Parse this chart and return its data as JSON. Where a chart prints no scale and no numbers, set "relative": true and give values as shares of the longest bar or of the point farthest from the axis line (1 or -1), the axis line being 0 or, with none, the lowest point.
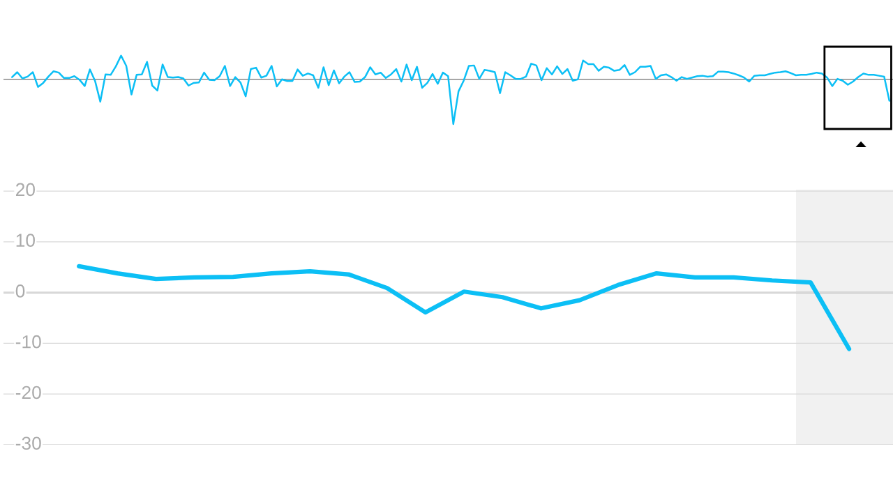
{
  "chart_data": [
    {
      "type": "line",
      "relative": true,
      "categories": [
        null,
        null,
        null,
        null,
        null,
        null,
        null,
        null,
        null,
        null,
        null,
        null,
        null,
        null,
        null,
        null,
        null,
        null,
        null,
        null,
        null,
        null,
        null,
        null,
        null,
        null,
        null,
        null,
        null,
        null,
        null,
        null,
        null,
        null,
        null,
        null,
        null,
        null,
        null,
        null,
        null,
        null,
        null,
        null,
        null,
        null,
        null,
        null,
        null,
        null,
        null,
        null,
        null,
        null,
        null,
        null,
        null,
        null,
        null,
        null,
        null,
        null,
        null,
        null,
        null,
        null,
        null,
        null,
        null,
        null,
        null,
        null,
        null,
        null,
        null,
        null,
        null,
        null,
        null,
        null,
        null,
        null,
        null,
        null,
        null,
        null,
        null,
        null,
        null,
        null,
        null,
        null,
        null,
        null,
        null,
        null,
        null,
        null,
        null,
        null,
        null,
        null,
        null,
        null,
        null,
        null,
        null,
        null,
        null,
        null,
        null,
        null,
        null,
        null,
        null,
        null,
        null,
        null,
        null,
        null,
        null,
        null,
        null,
        null,
        null,
        null,
        null,
        null,
        null,
        null,
        null,
        null,
        null,
        null,
        null,
        null,
        null,
        null,
        null,
        null,
        null,
        null,
        null,
        null,
        null,
        null,
        null,
        null,
        null,
        null,
        null,
        null,
        null,
        null,
        null,
        null,
        null,
        null,
        null,
        null,
        null,
        null,
        null,
        null,
        null,
        null,
        null,
        null,
        null,
        null
      ],
      "series": [
        {
          "color": "#0cbff5",
          "values": [
            0.05,
            0.16,
            0.02,
            0.06,
            0.16,
            -0.17,
            -0.08,
            0.06,
            0.18,
            0.15,
            0.03,
            0.03,
            0.07,
            -0.01,
            -0.15,
            0.22,
            -0.04,
            -0.5,
            0.11,
            0.1,
            0.29,
            0.53,
            0.3,
            -0.34,
            0.1,
            0.11,
            0.39,
            -0.14,
            -0.25,
            0.33,
            0.05,
            0.04,
            0.05,
            0.02,
            -0.14,
            -0.08,
            -0.07,
            0.15,
            -0.01,
            -0.02,
            0.07,
            0.3,
            -0.15,
            0.05,
            -0.07,
            -0.38,
            0.23,
            0.26,
            0.04,
            0.08,
            0.3,
            -0.16,
            0.0,
            -0.04,
            -0.04,
            0.22,
            0.08,
            0.13,
            0.09,
            -0.19,
            0.27,
            -0.13,
            0.2,
            -0.09,
            0.06,
            0.16,
            -0.06,
            -0.05,
            0.05,
            0.27,
            0.11,
            0.15,
            0.03,
            0.11,
            0.23,
            -0.05,
            0.33,
            -0.02,
            0.28,
            -0.19,
            -0.08,
            0.12,
            -0.1,
            0.15,
            0.07,
            -1.0,
            -0.27,
            -0.03,
            0.3,
            0.31,
            0.01,
            0.21,
            0.19,
            0.16,
            -0.31,
            0.16,
            0.09,
            0.01,
            0.01,
            0.06,
            0.35,
            0.31,
            -0.02,
            0.25,
            0.11,
            0.29,
            0.12,
            0.23,
            -0.03,
            0.0,
            0.42,
            0.34,
            0.34,
            0.19,
            0.28,
            0.26,
            0.19,
            0.21,
            0.32,
            0.1,
            0.16,
            0.28,
            0.28,
            0.3,
            0.01,
            0.09,
            0.11,
            0.05,
            -0.03,
            0.05,
            0.01,
            0.04,
            0.07,
            0.08,
            0.06,
            0.07,
            0.17,
            0.17,
            0.16,
            0.13,
            0.09,
            0.04,
            -0.05,
            0.08,
            0.09,
            0.09,
            0.12,
            0.15,
            0.16,
            0.18,
            0.14,
            0.09,
            0.1,
            0.1,
            0.12,
            0.15,
            0.13,
            0.04,
            -0.15,
            0.01,
            -0.03,
            -0.12,
            -0.05,
            0.05,
            0.13,
            0.1,
            0.1,
            0.08,
            0.06,
            -0.48
          ]
        }
      ],
      "tick_labels": false,
      "marker": "none",
      "line_style": "solid"
    },
    {
      "type": "line",
      "categories": [
        null,
        null,
        null,
        null,
        null,
        null,
        null,
        null,
        null,
        null,
        null,
        null,
        null,
        null,
        null,
        null,
        null,
        null,
        null,
        null,
        null
      ],
      "series": [
        {
          "color": "#0cbff5",
          "values": [
            5.2,
            3.8,
            2.7,
            3.0,
            3.1,
            3.8,
            4.2,
            3.6,
            0.9,
            -3.9,
            0.2,
            -0.9,
            -3.1,
            -1.5,
            1.5,
            3.8,
            3.0,
            3.0,
            2.4,
            2.0,
            -11.1
          ]
        }
      ],
      "ylim": [
        -30,
        20.3
      ],
      "yticks": [
        20,
        10,
        0,
        -10,
        -20,
        -30
      ],
      "grid": "y",
      "tick_labels": "y",
      "marker": "none",
      "line_style": "solid",
      "ref_lines": [
        {
          "axis": "y",
          "value": 0,
          "color": "#888888"
        }
      ]
    }
  ]
}
